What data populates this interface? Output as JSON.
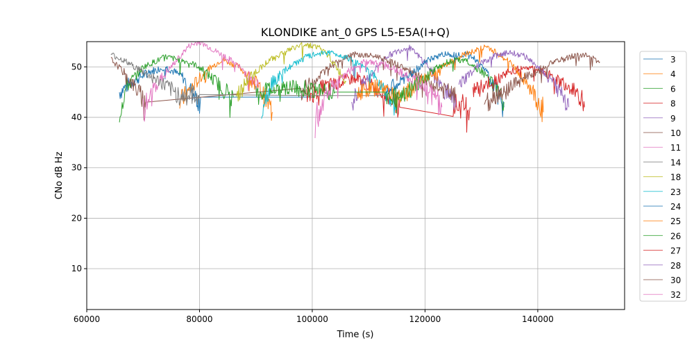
{
  "chart_data": {
    "type": "line",
    "title": "KLONDIKE ant_0 GPS L5-E5A(I+Q)",
    "xlabel": "Time (s)",
    "ylabel": "CNo dB Hz",
    "xlim": [
      60000,
      155400
    ],
    "ylim": [
      1.9,
      55
    ],
    "xticks": [
      60000,
      80000,
      100000,
      120000,
      140000
    ],
    "yticks": [
      10,
      20,
      30,
      40,
      50
    ],
    "grid": true,
    "legend_position": "right-outside",
    "series": [
      {
        "name": "3",
        "color": "#1f77b4",
        "points": [
          [
            65800,
            45
          ],
          [
            68000,
            47
          ],
          [
            71000,
            49
          ],
          [
            74000,
            50
          ],
          [
            77000,
            48
          ],
          [
            80000,
            43
          ],
          [
            80200,
            44
          ],
          [
            100000,
            44
          ]
        ]
      },
      {
        "name": "4",
        "color": "#ff7f0e",
        "points": [
          [
            76500,
            43
          ],
          [
            78000,
            45
          ],
          [
            81000,
            49
          ],
          [
            84000,
            51.5
          ],
          [
            87000,
            50
          ],
          [
            90000,
            47
          ],
          [
            93000,
            41
          ]
        ]
      },
      {
        "name": "6",
        "color": "#2ca02c",
        "points": [
          [
            65800,
            41
          ],
          [
            67000,
            46
          ],
          [
            70000,
            50
          ],
          [
            74000,
            52
          ],
          [
            78000,
            51
          ],
          [
            80000,
            50
          ],
          [
            83000,
            47
          ],
          [
            86000,
            44
          ]
        ]
      },
      {
        "name": "8",
        "color": "#d62728",
        "points": [
          [
            99000,
            44
          ],
          [
            102000,
            46
          ],
          [
            105000,
            47
          ],
          [
            108000,
            48
          ],
          [
            111000,
            46
          ],
          [
            114000,
            44
          ],
          [
            115500,
            42
          ],
          [
            125000,
            42.5
          ],
          [
            128000,
            42
          ]
        ]
      },
      {
        "name": "9",
        "color": "#9467bd",
        "points": [
          [
            107000,
            43
          ],
          [
            110000,
            48
          ],
          [
            113000,
            52
          ],
          [
            117000,
            54
          ],
          [
            120000,
            51
          ],
          [
            123000,
            46
          ],
          [
            125500,
            42
          ]
        ]
      },
      {
        "name": "10",
        "color": "#8c564b",
        "points": [
          [
            64300,
            51.5
          ],
          [
            66500,
            49
          ],
          [
            68500,
            46
          ],
          [
            70500,
            43
          ],
          [
            98000,
            45
          ],
          [
            101000,
            48
          ],
          [
            104000,
            51
          ],
          [
            107000,
            52.5
          ],
          [
            112000,
            52
          ],
          [
            116000,
            50
          ],
          [
            120000,
            47
          ],
          [
            124000,
            45
          ],
          [
            125500,
            44
          ]
        ]
      },
      {
        "name": "11",
        "color": "#e377c2",
        "points": [
          [
            70000,
            41
          ],
          [
            72000,
            46
          ],
          [
            75000,
            50
          ],
          [
            78000,
            54
          ],
          [
            80000,
            55
          ],
          [
            83000,
            53
          ],
          [
            86000,
            51
          ],
          [
            89000,
            48
          ],
          [
            90500,
            46
          ]
        ]
      },
      {
        "name": "14",
        "color": "#7f7f7f",
        "points": [
          [
            64300,
            52.5
          ],
          [
            67000,
            51
          ],
          [
            70000,
            49
          ],
          [
            73000,
            47
          ],
          [
            75500,
            45
          ],
          [
            77000,
            44
          ],
          [
            80000,
            44.5
          ],
          [
            100000,
            44.3
          ],
          [
            113000,
            44.3
          ]
        ]
      },
      {
        "name": "18",
        "color": "#bcbd22",
        "points": [
          [
            86500,
            44
          ],
          [
            89000,
            48
          ],
          [
            92000,
            51
          ],
          [
            95000,
            53
          ],
          [
            98500,
            54.5
          ],
          [
            101000,
            54
          ],
          [
            103000,
            52
          ],
          [
            106000,
            47
          ]
        ]
      },
      {
        "name": "23",
        "color": "#17becf",
        "points": [
          [
            91000,
            42
          ],
          [
            93000,
            47
          ],
          [
            96000,
            50
          ],
          [
            99000,
            52
          ],
          [
            102500,
            53
          ],
          [
            106000,
            52
          ],
          [
            109000,
            50
          ],
          [
            112000,
            47
          ],
          [
            115000,
            42
          ]
        ]
      },
      {
        "name": "24",
        "color": "#1f77b4",
        "points": [
          [
            113000,
            45
          ],
          [
            117000,
            48
          ],
          [
            120000,
            51
          ],
          [
            123000,
            52.5
          ],
          [
            128000,
            52.5
          ],
          [
            131000,
            49
          ],
          [
            134000,
            42
          ]
        ]
      },
      {
        "name": "25",
        "color": "#ff7f0e",
        "points": [
          [
            108000,
            45
          ],
          [
            112000,
            46
          ],
          [
            116000,
            44
          ],
          [
            119000,
            47
          ],
          [
            123000,
            50
          ],
          [
            127000,
            52.5
          ],
          [
            131000,
            54
          ],
          [
            135000,
            51
          ],
          [
            138000,
            47
          ],
          [
            141000,
            41
          ]
        ]
      },
      {
        "name": "26",
        "color": "#2ca02c",
        "points": [
          [
            90000,
            45
          ],
          [
            95000,
            46
          ],
          [
            100000,
            45.5
          ],
          [
            104000,
            45
          ],
          [
            113000,
            44
          ],
          [
            117000,
            45
          ],
          [
            121000,
            49
          ],
          [
            124000,
            51
          ],
          [
            127000,
            51.5
          ],
          [
            130000,
            49
          ],
          [
            132500,
            46
          ],
          [
            134000,
            43
          ]
        ]
      },
      {
        "name": "27",
        "color": "#d62728",
        "points": [
          [
            128500,
            45
          ],
          [
            132000,
            47
          ],
          [
            135000,
            49
          ],
          [
            138000,
            50
          ],
          [
            141000,
            49
          ],
          [
            144000,
            47
          ],
          [
            147000,
            45
          ],
          [
            148300,
            42
          ]
        ]
      },
      {
        "name": "28",
        "color": "#9467bd",
        "points": [
          [
            126000,
            46
          ],
          [
            129000,
            50
          ],
          [
            132000,
            52
          ],
          [
            135000,
            53
          ],
          [
            138000,
            52
          ],
          [
            141000,
            49
          ],
          [
            144000,
            45
          ],
          [
            145500,
            42
          ]
        ]
      },
      {
        "name": "30",
        "color": "#8c564b",
        "points": [
          [
            130500,
            43
          ],
          [
            134000,
            45
          ],
          [
            138000,
            48
          ],
          [
            141000,
            50
          ],
          [
            144000,
            51.5
          ],
          [
            148000,
            52.5
          ],
          [
            151000,
            51
          ]
        ]
      },
      {
        "name": "32",
        "color": "#e377c2",
        "points": [
          [
            100500,
            39
          ],
          [
            102500,
            45
          ],
          [
            105000,
            48
          ],
          [
            109000,
            51
          ],
          [
            113000,
            50.5
          ],
          [
            117000,
            48
          ],
          [
            120000,
            46
          ],
          [
            123000,
            42
          ]
        ]
      }
    ]
  }
}
